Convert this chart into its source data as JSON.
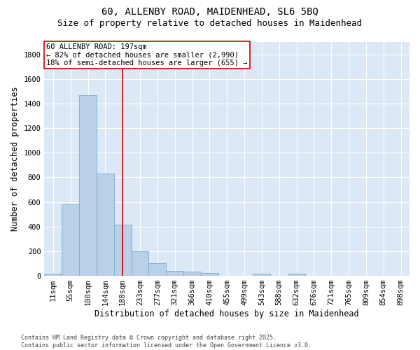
{
  "title_line1": "60, ALLENBY ROAD, MAIDENHEAD, SL6 5BQ",
  "title_line2": "Size of property relative to detached houses in Maidenhead",
  "xlabel": "Distribution of detached houses by size in Maidenhead",
  "ylabel": "Number of detached properties",
  "categories": [
    "11sqm",
    "55sqm",
    "100sqm",
    "144sqm",
    "188sqm",
    "233sqm",
    "277sqm",
    "321sqm",
    "366sqm",
    "410sqm",
    "455sqm",
    "499sqm",
    "543sqm",
    "588sqm",
    "632sqm",
    "676sqm",
    "721sqm",
    "765sqm",
    "809sqm",
    "854sqm",
    "898sqm"
  ],
  "values": [
    18,
    580,
    1470,
    830,
    415,
    200,
    105,
    40,
    35,
    25,
    0,
    0,
    15,
    0,
    15,
    0,
    0,
    0,
    0,
    0,
    0
  ],
  "bar_color": "#b8d0e8",
  "bar_edge_color": "#7aaad0",
  "vline_x": 4,
  "vline_color": "#cc0000",
  "annotation_text": "60 ALLENBY ROAD: 197sqm\n← 82% of detached houses are smaller (2,990)\n18% of semi-detached houses are larger (655) →",
  "annotation_box_color": "#cc0000",
  "ylim": [
    0,
    1900
  ],
  "yticks": [
    0,
    200,
    400,
    600,
    800,
    1000,
    1200,
    1400,
    1600,
    1800
  ],
  "background_color": "#dce8f5",
  "footnote": "Contains HM Land Registry data © Crown copyright and database right 2025.\nContains public sector information licensed under the Open Government Licence v3.0.",
  "title_fontsize": 10,
  "subtitle_fontsize": 9,
  "axis_label_fontsize": 8.5,
  "tick_fontsize": 7.5,
  "annotation_fontsize": 7.5,
  "footnote_fontsize": 6
}
